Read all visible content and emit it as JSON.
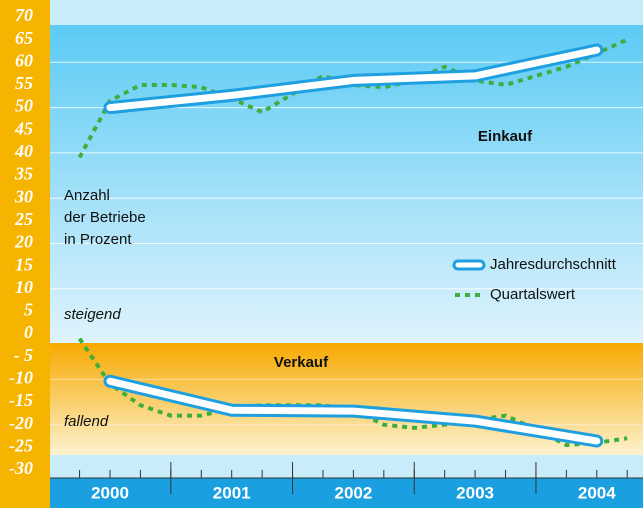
{
  "chart_data": {
    "type": "line",
    "categories": [
      "2000",
      "2001",
      "2002",
      "2003",
      "2004"
    ],
    "ylim": [
      -30,
      70
    ],
    "yticks": [
      70,
      65,
      60,
      55,
      50,
      45,
      40,
      35,
      30,
      25,
      20,
      15,
      10,
      5,
      0,
      {
        "value": -5,
        "label": "- 5"
      },
      -10,
      -15,
      -20,
      -25,
      -30
    ],
    "grid": true,
    "axis_label": [
      "Anzahl",
      "der Betriebe",
      "in Prozent"
    ],
    "annotations": [
      "steigend",
      "fallend"
    ],
    "legend": [
      {
        "name": "Jahresdurchschnitt",
        "color": "#1e9fe0"
      },
      {
        "name": "Quartalswert",
        "color": "#3fae3f"
      }
    ],
    "panels": [
      {
        "label": "Einkauf",
        "annual": [
          50,
          52.7,
          56,
          57,
          62.7
        ],
        "quarterly": [
          39,
          51.5,
          55,
          55,
          54.5,
          52,
          49,
          53,
          57,
          55,
          54.5,
          56,
          59,
          56,
          55,
          57,
          59,
          62,
          65
        ]
      },
      {
        "label": "Verkauf",
        "annual": [
          -10.4,
          -16.8,
          -17,
          -19.2,
          -23.6
        ],
        "quarterly": [
          -1,
          -11,
          -15.7,
          -18,
          -18,
          -16.3,
          -15.7,
          -15.7,
          -15.7,
          -16.8,
          -20,
          -20.7,
          -20,
          -19,
          -18,
          -21,
          -24.5,
          -24,
          -23
        ]
      }
    ]
  }
}
